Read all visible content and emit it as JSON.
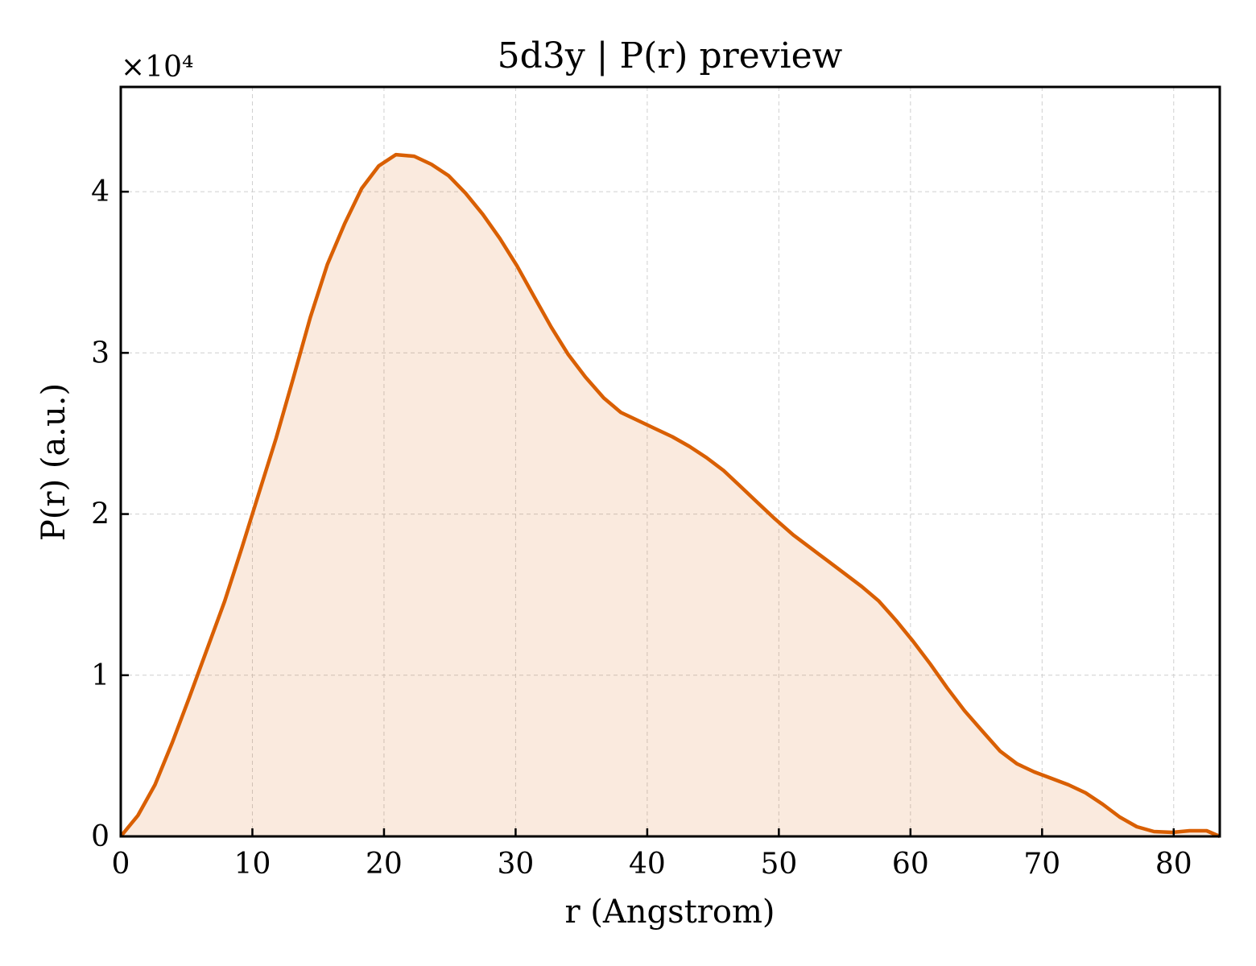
{
  "chart_data": {
    "type": "area",
    "title": "5d3y | P(r) preview",
    "xlabel": "r (Angstrom)",
    "ylabel": "P(r) (a.u.)",
    "y_scale_label": "×10⁴",
    "y_scale_factor": 10000,
    "xlim": [
      0,
      83.5
    ],
    "ylim": [
      0,
      46500
    ],
    "grid": true,
    "legend": "none",
    "line_color": "#d95f02",
    "fill_color": "#d95f02",
    "fill_opacity": 0.13,
    "x_ticks": [
      0,
      10,
      20,
      30,
      40,
      50,
      60,
      70,
      80
    ],
    "x_tick_labels": [
      "0",
      "10",
      "20",
      "30",
      "40",
      "50",
      "60",
      "70",
      "80"
    ],
    "y_ticks": [
      0,
      10000,
      20000,
      30000,
      40000
    ],
    "y_tick_labels": [
      "0",
      "1",
      "2",
      "3",
      "4"
    ],
    "series": [
      {
        "x": [
          0,
          1.3,
          2.6,
          3.9,
          5.2,
          6.5,
          7.9,
          9.2,
          10.5,
          11.8,
          13.1,
          14.4,
          15.7,
          17.0,
          18.3,
          19.6,
          20.9,
          22.3,
          23.6,
          24.9,
          26.2,
          27.5,
          28.8,
          30.1,
          31.4,
          32.7,
          34.0,
          35.3,
          36.7,
          38.0,
          39.3,
          40.6,
          41.9,
          43.2,
          44.5,
          45.8,
          47.1,
          48.4,
          49.7,
          51.1,
          52.4,
          53.7,
          55.0,
          56.3,
          57.6,
          58.9,
          60.2,
          61.5,
          62.8,
          64.1,
          65.5,
          66.8,
          68.1,
          69.4,
          70.7,
          72.0,
          73.3,
          74.6,
          75.9,
          77.2,
          78.5,
          79.9,
          81.2,
          82.5,
          83.5
        ],
        "values": [
          0,
          1300,
          3200,
          5800,
          8600,
          11500,
          14600,
          17900,
          21300,
          24700,
          28400,
          32200,
          35500,
          38000,
          40200,
          41600,
          42300,
          42200,
          41700,
          41000,
          39900,
          38600,
          37100,
          35400,
          33500,
          31600,
          29900,
          28500,
          27200,
          26300,
          25800,
          25300,
          24800,
          24200,
          23500,
          22700,
          21700,
          20700,
          19700,
          18700,
          17900,
          17100,
          16300,
          15500,
          14600,
          13400,
          12100,
          10700,
          9200,
          7800,
          6500,
          5300,
          4500,
          4000,
          3600,
          3200,
          2700,
          2000,
          1200,
          600,
          300,
          250,
          350,
          350,
          0
        ]
      }
    ]
  }
}
